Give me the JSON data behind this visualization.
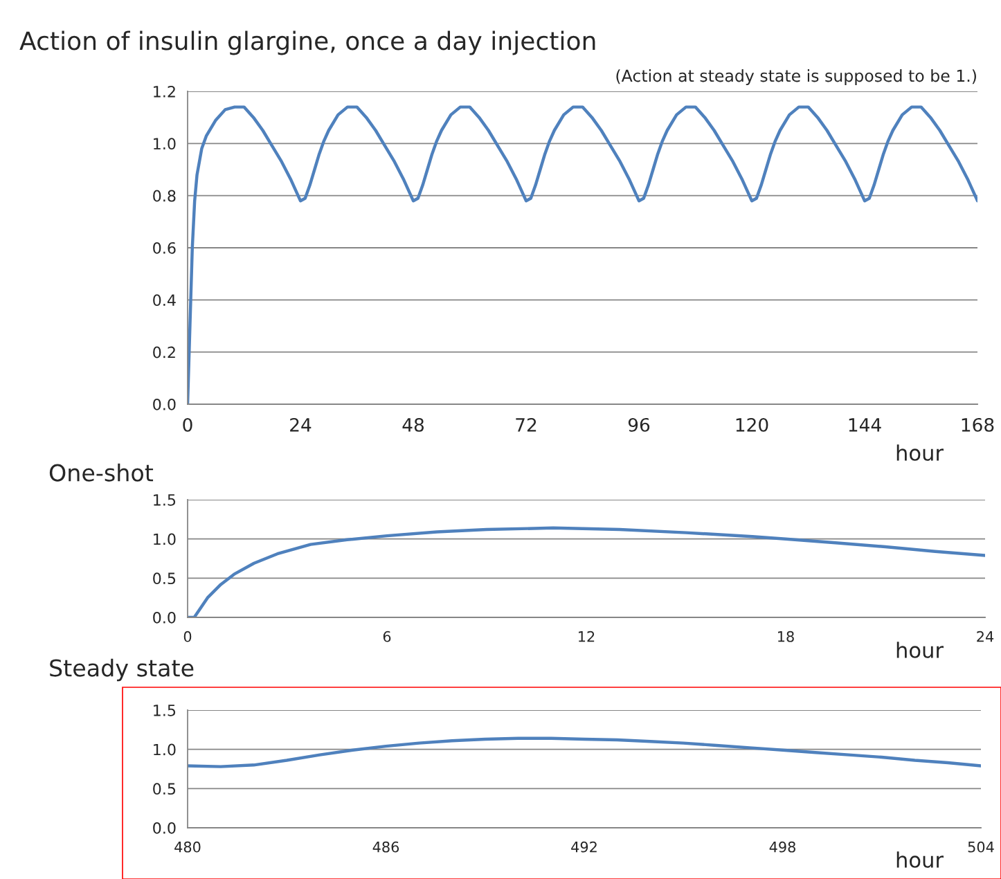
{
  "chart_data": [
    {
      "type": "line",
      "title": "Action of insulin glargine, once a day injection",
      "subtitle": "(Action at steady state is supposed to be 1.)",
      "xlabel": "hour",
      "xlim": [
        0,
        168
      ],
      "xticks": [
        0,
        24,
        48,
        72,
        96,
        120,
        144,
        168
      ],
      "ylim": [
        0,
        1.2
      ],
      "yticks": [
        {
          "value": 0,
          "label": "0.0"
        },
        {
          "value": 0.2,
          "label": "0.2"
        },
        {
          "value": 0.4,
          "label": "0.4"
        },
        {
          "value": 0.6,
          "label": "0.6"
        },
        {
          "value": 0.8,
          "label": "0.8"
        },
        {
          "value": 1.0,
          "label": "1.0"
        },
        {
          "value": 1.2,
          "label": "1.2"
        }
      ],
      "grid": "y",
      "marker": "none",
      "line_style": "solid",
      "series": [
        {
          "color": "#4f81bd",
          "x": [
            0,
            0.5,
            1,
            1.5,
            2,
            3,
            4,
            6,
            8,
            10,
            12,
            14,
            16,
            18,
            20,
            22,
            24,
            25,
            26,
            27,
            28,
            29,
            30,
            32,
            34,
            36,
            38,
            40,
            42,
            44,
            46,
            48,
            49,
            50,
            51,
            52,
            53,
            54,
            56,
            58,
            60,
            62,
            64,
            66,
            68,
            70,
            72,
            73,
            74,
            75,
            76,
            77,
            78,
            80,
            82,
            84,
            86,
            88,
            90,
            92,
            94,
            96,
            97,
            98,
            99,
            100,
            101,
            102,
            104,
            106,
            108,
            110,
            112,
            114,
            116,
            118,
            120,
            121,
            122,
            123,
            124,
            125,
            126,
            128,
            130,
            132,
            134,
            136,
            138,
            140,
            142,
            144,
            145,
            146,
            147,
            148,
            149,
            150,
            152,
            154,
            156,
            158,
            160,
            162,
            164,
            166,
            168
          ],
          "values": [
            0,
            0.3,
            0.6,
            0.78,
            0.88,
            0.98,
            1.03,
            1.09,
            1.13,
            1.14,
            1.14,
            1.1,
            1.05,
            0.99,
            0.93,
            0.86,
            0.78,
            0.79,
            0.84,
            0.9,
            0.96,
            1.01,
            1.05,
            1.11,
            1.14,
            1.14,
            1.1,
            1.05,
            0.99,
            0.93,
            0.86,
            0.78,
            0.79,
            0.84,
            0.9,
            0.96,
            1.01,
            1.05,
            1.11,
            1.14,
            1.14,
            1.1,
            1.05,
            0.99,
            0.93,
            0.86,
            0.78,
            0.79,
            0.84,
            0.9,
            0.96,
            1.01,
            1.05,
            1.11,
            1.14,
            1.14,
            1.1,
            1.05,
            0.99,
            0.93,
            0.86,
            0.78,
            0.79,
            0.84,
            0.9,
            0.96,
            1.01,
            1.05,
            1.11,
            1.14,
            1.14,
            1.1,
            1.05,
            0.99,
            0.93,
            0.86,
            0.78,
            0.79,
            0.84,
            0.9,
            0.96,
            1.01,
            1.05,
            1.11,
            1.14,
            1.14,
            1.1,
            1.05,
            0.99,
            0.93,
            0.86,
            0.78,
            0.79,
            0.84,
            0.9,
            0.96,
            1.01,
            1.05,
            1.11,
            1.14,
            1.14,
            1.1,
            1.05,
            0.99,
            0.93,
            0.86,
            0.78
          ]
        }
      ]
    },
    {
      "type": "line",
      "title": "One-shot",
      "xlabel": "hour",
      "xlim": [
        0,
        24
      ],
      "xticks": [
        0,
        6,
        12,
        18,
        24
      ],
      "ylim": [
        0,
        1.5
      ],
      "yticks": [
        {
          "value": 0,
          "label": "0.0"
        },
        {
          "value": 0.5,
          "label": "0.5"
        },
        {
          "value": 1.0,
          "label": "1.0"
        },
        {
          "value": 1.5,
          "label": "1.5"
        }
      ],
      "grid": "y",
      "marker": "none",
      "line_style": "solid",
      "series": [
        {
          "color": "#4f81bd",
          "x": [
            0,
            0.2,
            0.6,
            1,
            1.4,
            2,
            2.7,
            3.7,
            4.8,
            6,
            7.5,
            9,
            11,
            13,
            15,
            17,
            18,
            19.5,
            21,
            22.5,
            24
          ],
          "values": [
            0,
            0,
            0.25,
            0.42,
            0.55,
            0.69,
            0.81,
            0.93,
            0.99,
            1.04,
            1.09,
            1.12,
            1.14,
            1.12,
            1.08,
            1.03,
            1.0,
            0.95,
            0.9,
            0.84,
            0.79
          ]
        }
      ]
    },
    {
      "type": "line",
      "title": "Steady state",
      "xlabel": "hour",
      "xlim": [
        480,
        504
      ],
      "xticks": [
        480,
        486,
        492,
        498,
        504
      ],
      "ylim": [
        0,
        1.5
      ],
      "yticks": [
        {
          "value": 0,
          "label": "0.0"
        },
        {
          "value": 0.5,
          "label": "0.5"
        },
        {
          "value": 1.0,
          "label": "1.0"
        },
        {
          "value": 1.5,
          "label": "1.5"
        }
      ],
      "grid": "y",
      "marker": "none",
      "line_style": "solid",
      "series": [
        {
          "color": "#4f81bd",
          "x": [
            480,
            481,
            482,
            483,
            484,
            485,
            486,
            487,
            488,
            489,
            490,
            491,
            492,
            493,
            494,
            495,
            496,
            497,
            498,
            499,
            500,
            501,
            502,
            503,
            504
          ],
          "values": [
            0.79,
            0.78,
            0.8,
            0.86,
            0.93,
            0.99,
            1.04,
            1.08,
            1.11,
            1.13,
            1.14,
            1.14,
            1.13,
            1.12,
            1.1,
            1.08,
            1.05,
            1.02,
            0.99,
            0.96,
            0.93,
            0.9,
            0.86,
            0.83,
            0.79
          ]
        }
      ]
    }
  ]
}
